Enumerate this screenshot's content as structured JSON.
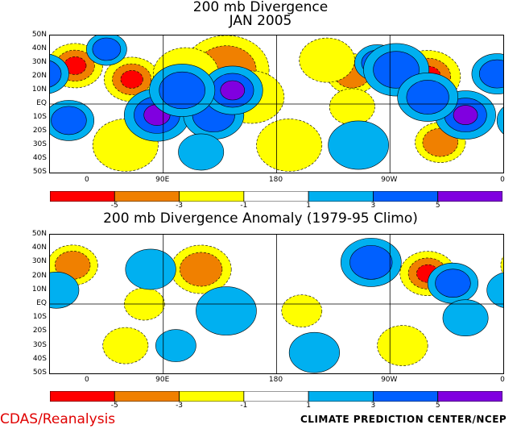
{
  "chart_data": [
    {
      "type": "heatmap",
      "title": "200 mb Divergence",
      "subtitle": "JAN 2005",
      "y_ticks": [
        "50N",
        "40N",
        "30N",
        "20N",
        "10N",
        "EQ",
        "10S",
        "20S",
        "30S",
        "40S",
        "50S"
      ],
      "x_ticks": [
        "0",
        "90E",
        "180",
        "90W",
        "0"
      ],
      "colorbar": {
        "labels": [
          "-5",
          "-3",
          "-1",
          "1",
          "3",
          "5"
        ],
        "colors": [
          "#ff0000",
          "#f08000",
          "#ffff00",
          "#ffffff",
          "#00b0f0",
          "#0060ff",
          "#8000e0"
        ]
      },
      "features": [
        {
          "lat": 28,
          "lon": 20,
          "value": -5,
          "r": 22
        },
        {
          "lat": 18,
          "lon": 65,
          "value": -5,
          "r": 22
        },
        {
          "lat": 25,
          "lon": 140,
          "value": -4,
          "r": 34
        },
        {
          "lat": 22,
          "lon": 108,
          "value": -2,
          "r": 26
        },
        {
          "lat": 22,
          "lon": 240,
          "value": -3,
          "r": 20
        },
        {
          "lat": 20,
          "lon": 300,
          "value": -5,
          "r": 26
        },
        {
          "lat": 32,
          "lon": 220,
          "value": -2,
          "r": 22
        },
        {
          "lat": 5,
          "lon": 160,
          "value": -2,
          "r": 26
        },
        {
          "lat": -2,
          "lon": 240,
          "value": -2,
          "r": 18
        },
        {
          "lat": -28,
          "lon": 310,
          "value": -3,
          "r": 20
        },
        {
          "lat": -30,
          "lon": 60,
          "value": -1,
          "r": 26
        },
        {
          "lat": -30,
          "lon": 190,
          "value": -2,
          "r": 26
        },
        {
          "lat": -8,
          "lon": 85,
          "value": 5,
          "r": 26
        },
        {
          "lat": -8,
          "lon": 130,
          "value": 4,
          "r": 24
        },
        {
          "lat": 10,
          "lon": 145,
          "value": 5,
          "r": 24
        },
        {
          "lat": 10,
          "lon": 105,
          "value": 3,
          "r": 26
        },
        {
          "lat": 30,
          "lon": 260,
          "value": 5,
          "r": 18
        },
        {
          "lat": 25,
          "lon": 275,
          "value": 3,
          "r": 26
        },
        {
          "lat": -8,
          "lon": 330,
          "value": 5,
          "r": 24
        },
        {
          "lat": 5,
          "lon": 300,
          "value": 3,
          "r": 24
        },
        {
          "lat": 22,
          "lon": 355,
          "value": 3,
          "r": 20
        },
        {
          "lat": -12,
          "lon": 15,
          "value": 3,
          "r": 20
        },
        {
          "lat": -30,
          "lon": 245,
          "value": 2,
          "r": 24
        },
        {
          "lat": 40,
          "lon": 45,
          "value": 3,
          "r": 16
        },
        {
          "lat": -35,
          "lon": 120,
          "value": 2,
          "r": 18
        }
      ]
    },
    {
      "type": "heatmap",
      "title": "200 mb Divergence Anomaly (1979-95 Climo)",
      "y_ticks": [
        "50N",
        "40N",
        "30N",
        "20N",
        "10N",
        "EQ",
        "10S",
        "20S",
        "30S",
        "40S",
        "50S"
      ],
      "x_ticks": [
        "0",
        "90E",
        "180",
        "90W",
        "0"
      ],
      "colorbar": {
        "labels": [
          "-5",
          "-3",
          "-1",
          "1",
          "3",
          "5"
        ],
        "colors": [
          "#ff0000",
          "#f08000",
          "#ffff00",
          "#ffffff",
          "#00b0f0",
          "#0060ff",
          "#8000e0"
        ]
      },
      "features": [
        {
          "lat": 28,
          "lon": 18,
          "value": -4,
          "r": 20
        },
        {
          "lat": 25,
          "lon": 120,
          "value": -3,
          "r": 24
        },
        {
          "lat": 22,
          "lon": 300,
          "value": -5,
          "r": 22
        },
        {
          "lat": 0,
          "lon": 75,
          "value": -2,
          "r": 16
        },
        {
          "lat": -30,
          "lon": 60,
          "value": -1,
          "r": 18
        },
        {
          "lat": -5,
          "lon": 200,
          "value": -1,
          "r": 16
        },
        {
          "lat": -30,
          "lon": 280,
          "value": -1,
          "r": 20
        },
        {
          "lat": 30,
          "lon": 255,
          "value": 4,
          "r": 24
        },
        {
          "lat": 15,
          "lon": 320,
          "value": 3,
          "r": 20
        },
        {
          "lat": 25,
          "lon": 80,
          "value": 2,
          "r": 20
        },
        {
          "lat": -5,
          "lon": 140,
          "value": 2,
          "r": 24
        },
        {
          "lat": 10,
          "lon": 5,
          "value": 2,
          "r": 18
        },
        {
          "lat": -35,
          "lon": 210,
          "value": 2,
          "r": 20
        },
        {
          "lat": -10,
          "lon": 330,
          "value": 2,
          "r": 18
        },
        {
          "lat": -30,
          "lon": 100,
          "value": 1,
          "r": 16
        }
      ]
    }
  ],
  "footer": {
    "left": "CDAS/Reanalysis",
    "right": "CLIMATE PREDICTION CENTER/NCEP"
  }
}
